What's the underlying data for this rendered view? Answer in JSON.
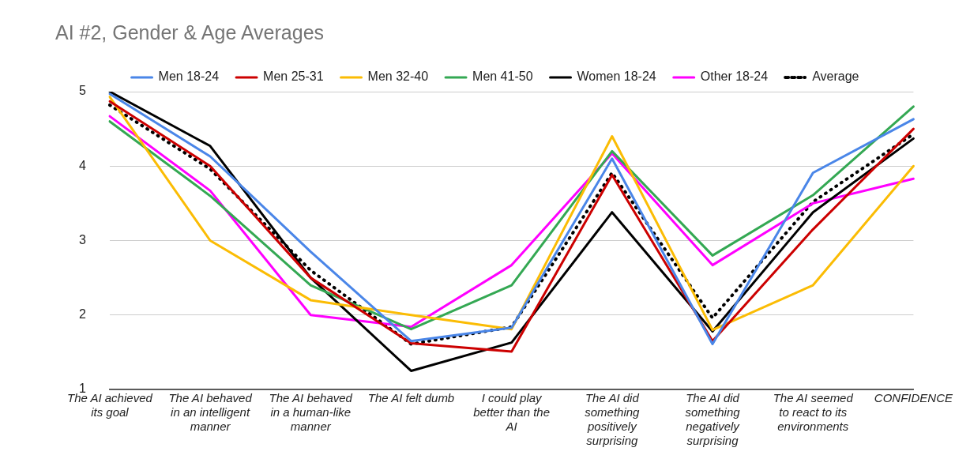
{
  "chart_data": {
    "type": "line",
    "title": "AI #2, Gender & Age Averages",
    "categories": [
      "The AI achieved its goal",
      "The AI behaved in an intelligent manner",
      "The AI behaved in a human-like manner",
      "The AI felt dumb",
      "I could play better than the AI",
      "The AI did something positively surprising",
      "The AI did something negatively surprising",
      "The AI seemed to react to its environments",
      "CONFIDENCE"
    ],
    "series": [
      {
        "name": "Men 18-24",
        "color": "#4a86e8",
        "values": [
          4.97,
          4.13,
          2.85,
          1.65,
          1.83,
          4.1,
          1.61,
          3.91,
          4.63
        ]
      },
      {
        "name": "Men 25-31",
        "color": "#cc0000",
        "values": [
          4.87,
          4.0,
          2.5,
          1.62,
          1.51,
          3.88,
          1.65,
          3.15,
          4.5
        ]
      },
      {
        "name": "Men 32-40",
        "color": "#fbbc04",
        "values": [
          4.93,
          3.0,
          2.2,
          2.0,
          1.81,
          4.4,
          1.8,
          2.4,
          4.0
        ]
      },
      {
        "name": "Men 41-50",
        "color": "#34a853",
        "values": [
          4.6,
          3.6,
          2.4,
          1.81,
          2.4,
          4.2,
          2.8,
          3.61,
          4.8
        ]
      },
      {
        "name": "Women 18-24",
        "color": "#000000",
        "values": [
          5.0,
          4.27,
          2.5,
          1.25,
          1.63,
          3.38,
          1.78,
          3.38,
          4.37
        ]
      },
      {
        "name": "Other 18-24",
        "color": "#ff00ff",
        "values": [
          4.67,
          3.67,
          2.0,
          1.84,
          2.67,
          4.17,
          2.67,
          3.5,
          3.83
        ]
      },
      {
        "name": "Average",
        "color": "#000000",
        "line_style": "dotted",
        "values": [
          4.82,
          3.96,
          2.6,
          1.61,
          1.84,
          3.91,
          1.96,
          3.52,
          4.43
        ]
      }
    ],
    "ylim": [
      1,
      5
    ],
    "yticks": [
      1,
      2,
      3,
      4,
      5
    ],
    "grid": "y",
    "legend": "top",
    "marker": "none",
    "line_style": "solid"
  }
}
